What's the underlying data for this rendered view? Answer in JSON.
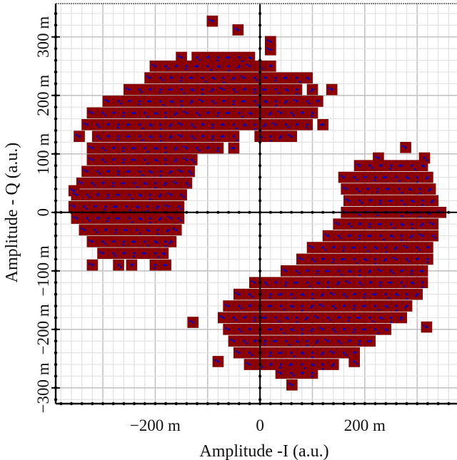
{
  "chart_data": {
    "type": "scatter",
    "title": "",
    "xlabel": "Amplitude -I (a.u.)",
    "ylabel": "Amplitude - Q (a.u.)",
    "xlim": [
      -390,
      376
    ],
    "ylim": [
      -327,
      357
    ],
    "grid": true,
    "legend": "none",
    "marker": {
      "shape": "square",
      "fill": "#8b0000",
      "inner_dot": "#0000cc"
    },
    "x_ticks": [
      {
        "value": -200,
        "label": "−200 m"
      },
      {
        "value": 0,
        "label": "0"
      },
      {
        "value": 200,
        "label": "200 m"
      }
    ],
    "y_ticks": [
      {
        "value": -300,
        "label": "−300 m"
      },
      {
        "value": -200,
        "label": "−200 m"
      },
      {
        "value": -100,
        "label": "−100 m"
      },
      {
        "value": 0,
        "label": "0"
      },
      {
        "value": 100,
        "label": "100 m"
      },
      {
        "value": 200,
        "label": "200 m"
      },
      {
        "value": 300,
        "label": "300 m"
      }
    ],
    "series": [
      {
        "rows": [
          [
            327,
            [
              -91
            ]
          ],
          [
            312,
            [
              -42
            ]
          ],
          [
            292,
            [
              20
            ]
          ],
          [
            278,
            [
              20
            ]
          ],
          [
            265,
            [
              -150,
              -120,
              -100,
              -80,
              -60,
              -40,
              -20
            ]
          ],
          [
            250,
            [
              -200,
              -180,
              -160,
              -140,
              -120,
              -100,
              -80,
              -60,
              -40,
              -20,
              0,
              20
            ]
          ],
          [
            230,
            [
              -210,
              -190,
              -170,
              -150,
              -130,
              -110,
              -90,
              -70,
              -50,
              -30,
              -10,
              10,
              30,
              50,
              70,
              90
            ]
          ],
          [
            210,
            [
              -250,
              -230,
              -210,
              -190,
              -170,
              -150,
              -130,
              -110,
              -90,
              -70,
              -50,
              -30,
              -10,
              10,
              30,
              50,
              70,
              100,
              137
            ]
          ],
          [
            190,
            [
              -290,
              -270,
              -250,
              -230,
              -210,
              -190,
              -170,
              -150,
              -130,
              -110,
              -90,
              -70,
              -50,
              -30,
              -10,
              10,
              30,
              50,
              70,
              90,
              110
            ]
          ],
          [
            170,
            [
              -320,
              -300,
              -280,
              -260,
              -240,
              -220,
              -200,
              -180,
              -160,
              -140,
              -120,
              -100,
              -80,
              -60,
              -40,
              -20,
              0,
              20,
              40,
              60,
              80,
              100
            ]
          ],
          [
            150,
            [
              -330,
              -310,
              -290,
              -270,
              -250,
              -230,
              -210,
              -190,
              -170,
              -150,
              -130,
              -110,
              -90,
              -70,
              -50,
              -30,
              -10,
              10,
              30,
              50,
              70,
              90,
              120
            ]
          ],
          [
            130,
            [
              -345,
              -310,
              -290,
              -270,
              -250,
              -230,
              -210,
              -190,
              -170,
              -150,
              -130,
              -110,
              -90,
              -70,
              -50,
              0,
              20,
              40,
              60
            ]
          ],
          [
            110,
            [
              -320,
              -300,
              -280,
              -260,
              -240,
              -220,
              -200,
              -180,
              -160,
              -140,
              -120,
              -100,
              -80,
              -50
            ]
          ],
          [
            90,
            [
              -320,
              -300,
              -280,
              -260,
              -240,
              -220,
              -200,
              -180,
              -160,
              -140,
              -130
            ]
          ],
          [
            70,
            [
              -330,
              -310,
              -290,
              -270,
              -250,
              -230,
              -210,
              -190,
              -170,
              -150,
              -135
            ]
          ],
          [
            50,
            [
              -340,
              -320,
              -300,
              -280,
              -260,
              -240,
              -220,
              -200,
              -180,
              -160,
              -140
            ]
          ],
          [
            37,
            [
              -355
            ]
          ],
          [
            30,
            [
              -350,
              -330,
              -310,
              -290,
              -270,
              -250,
              -230,
              -210,
              -190,
              -170,
              -150
            ]
          ],
          [
            10,
            [
              -355,
              -335,
              -315,
              -295,
              -275,
              -255,
              -235,
              -215,
              -195,
              -175,
              -155
            ]
          ],
          [
            -10,
            [
              -350,
              -330,
              -310,
              -290,
              -270,
              -250,
              -230,
              -210,
              -190,
              -170,
              -155
            ]
          ],
          [
            -30,
            [
              -335,
              -315,
              -295,
              -275,
              -255,
              -235,
              -215,
              -195,
              -175,
              -160
            ]
          ],
          [
            -50,
            [
              -320,
              -300,
              -280,
              -260,
              -240,
              -220,
              -200,
              -180,
              -170
            ]
          ],
          [
            -70,
            [
              -300,
              -280,
              -260,
              -240,
              -220,
              -200,
              -185
            ]
          ],
          [
            -90,
            [
              -320,
              -270,
              -245,
              -200,
              -180
            ]
          ]
        ]
      },
      {
        "rows": [
          [
            111,
            [
              278
            ]
          ],
          [
            93,
            [
              226,
              314
            ]
          ],
          [
            80,
            [
              190,
              210,
              230,
              250,
              270,
              290,
              310
            ]
          ],
          [
            60,
            [
              160,
              180,
              200,
              220,
              240,
              260,
              280,
              300,
              320
            ]
          ],
          [
            40,
            [
              165,
              185,
              205,
              225,
              245,
              265,
              285,
              305,
              325
            ]
          ],
          [
            20,
            [
              170,
              190,
              210,
              230,
              250,
              270,
              290,
              310,
              330
            ]
          ],
          [
            0,
            [
              165,
              185,
              205,
              225,
              245,
              265,
              285,
              305,
              325,
              345
            ]
          ],
          [
            -20,
            [
              150,
              170,
              190,
              210,
              230,
              250,
              270,
              290,
              310,
              330
            ]
          ],
          [
            -40,
            [
              130,
              150,
              170,
              190,
              210,
              230,
              250,
              270,
              290,
              310,
              330
            ]
          ],
          [
            -60,
            [
              100,
              120,
              140,
              160,
              180,
              200,
              220,
              240,
              260,
              280,
              300,
              320
            ]
          ],
          [
            -80,
            [
              80,
              100,
              120,
              140,
              160,
              180,
              200,
              220,
              240,
              260,
              280,
              300,
              320
            ]
          ],
          [
            -100,
            [
              50,
              70,
              90,
              110,
              130,
              150,
              170,
              190,
              210,
              230,
              250,
              270,
              290,
              310
            ]
          ],
          [
            -120,
            [
              -10,
              10,
              30,
              50,
              70,
              90,
              110,
              130,
              150,
              170,
              190,
              210,
              230,
              250,
              270,
              290,
              310
            ]
          ],
          [
            -140,
            [
              -40,
              -20,
              0,
              20,
              40,
              60,
              80,
              100,
              120,
              140,
              160,
              180,
              200,
              220,
              240,
              260,
              280,
              300
            ]
          ],
          [
            -160,
            [
              -60,
              -40,
              -20,
              0,
              20,
              40,
              60,
              80,
              100,
              120,
              140,
              160,
              180,
              200,
              220,
              240,
              260,
              280
            ]
          ],
          [
            -180,
            [
              -70,
              -50,
              -30,
              -10,
              10,
              30,
              50,
              70,
              90,
              110,
              130,
              150,
              170,
              190,
              210,
              230,
              250,
              270
            ]
          ],
          [
            -188,
            [
              -128
            ]
          ],
          [
            -196,
            [
              318
            ]
          ],
          [
            -200,
            [
              -60,
              -40,
              -20,
              0,
              20,
              40,
              60,
              80,
              100,
              120,
              140,
              160,
              180,
              200,
              220,
              240
            ]
          ],
          [
            -220,
            [
              -50,
              -30,
              -10,
              10,
              30,
              50,
              70,
              90,
              110,
              130,
              150,
              170,
              190,
              210
            ]
          ],
          [
            -240,
            [
              -40,
              -20,
              0,
              20,
              40,
              60,
              80,
              100,
              120,
              140,
              160,
              180
            ]
          ],
          [
            -255,
            [
              -80,
              180
            ]
          ],
          [
            -260,
            [
              -20,
              0,
              20,
              40,
              60,
              80,
              100,
              120,
              140
            ]
          ],
          [
            -275,
            [
              40,
              60,
              80,
              100
            ]
          ],
          [
            -295,
            [
              61
            ]
          ]
        ]
      }
    ]
  }
}
